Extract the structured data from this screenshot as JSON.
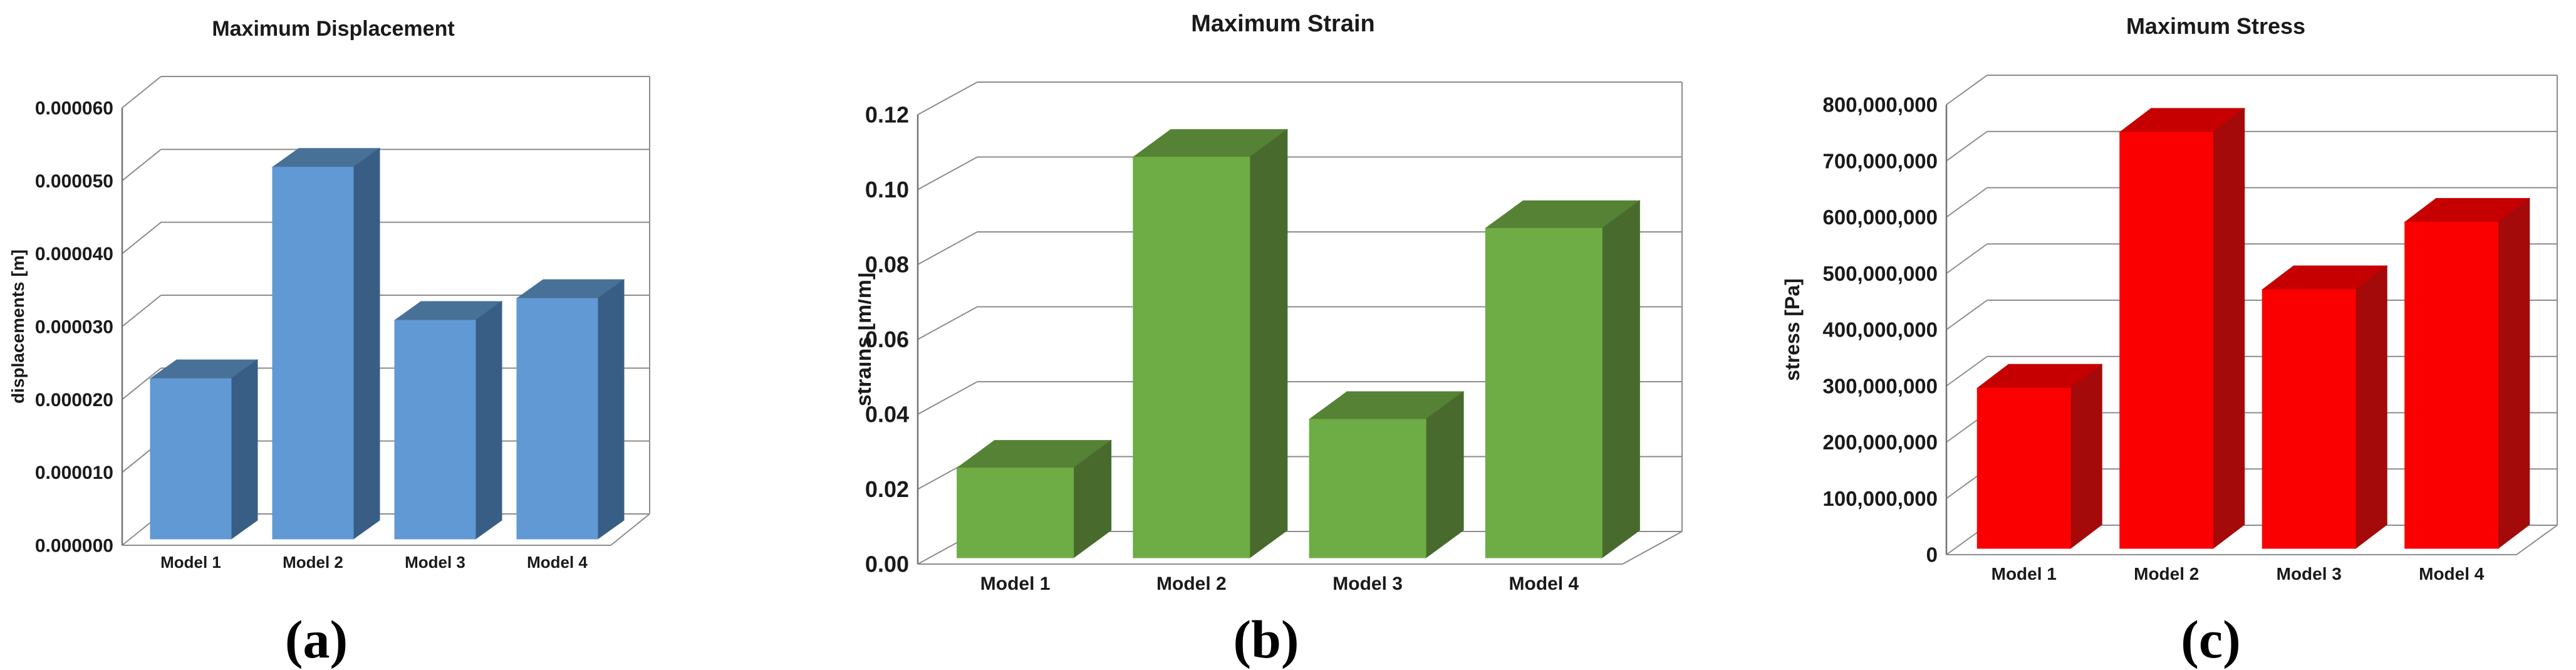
{
  "figure": {
    "captions": [
      "(a)",
      "(b)",
      "(c)"
    ]
  },
  "chart_data": [
    {
      "type": "bar",
      "style": "3d-column",
      "title": "Maximum Displacement",
      "xlabel": "",
      "ylabel": "displacements [m]",
      "categories": [
        "Model 1",
        "Model 2",
        "Model 3",
        "Model 4"
      ],
      "values": [
        2.2e-05,
        5.1e-05,
        3e-05,
        3.3e-05
      ],
      "ylim": [
        0,
        6e-05
      ],
      "ytick_step": 1e-05,
      "ytick_labels": [
        "0.000000",
        "0.000010",
        "0.000020",
        "0.000030",
        "0.000040",
        "0.000050",
        "0.000060"
      ],
      "grid": true,
      "legend": "none",
      "caption": "(a)",
      "colors": {
        "front": "#6099D4",
        "top": "#487198",
        "side": "#385E85",
        "grid": "#8c8c8c",
        "axis": "#737373",
        "text": "#1a1a1a"
      }
    },
    {
      "type": "bar",
      "style": "3d-column",
      "title": "Maximum Strain",
      "xlabel": "",
      "ylabel": "strains [m/m]",
      "categories": [
        "Model 1",
        "Model 2",
        "Model 3",
        "Model 4"
      ],
      "values": [
        0.024,
        0.107,
        0.037,
        0.088
      ],
      "ylim": [
        0,
        0.12
      ],
      "ytick_step": 0.02,
      "ytick_labels": [
        "0.00",
        "0.02",
        "0.04",
        "0.06",
        "0.08",
        "0.10",
        "0.12"
      ],
      "grid": true,
      "legend": "none",
      "caption": "(b)",
      "colors": {
        "front": "#6EAC46",
        "top": "#558234",
        "side": "#486B2D",
        "grid": "#8c8c8c",
        "axis": "#737373",
        "text": "#1a1a1a"
      }
    },
    {
      "type": "bar",
      "style": "3d-column",
      "title": "Maximum Stress",
      "xlabel": "",
      "ylabel": "stress [Pa]",
      "categories": [
        "Model 1",
        "Model 2",
        "Model 3",
        "Model 4"
      ],
      "values": [
        285000000,
        740000000,
        460000000,
        580000000
      ],
      "ylim": [
        0,
        800000000
      ],
      "ytick_step": 100000000,
      "ytick_labels": [
        "0",
        "100,000,000",
        "200,000,000",
        "300,000,000",
        "400,000,000",
        "500,000,000",
        "600,000,000",
        "700,000,000",
        "800,000,000"
      ],
      "grid": true,
      "legend": "none",
      "caption": "(c)",
      "colors": {
        "front": "#FA0000",
        "top": "#C60000",
        "side": "#A40A0A",
        "grid": "#8c8c8c",
        "axis": "#737373",
        "text": "#1a1a1a"
      }
    }
  ]
}
